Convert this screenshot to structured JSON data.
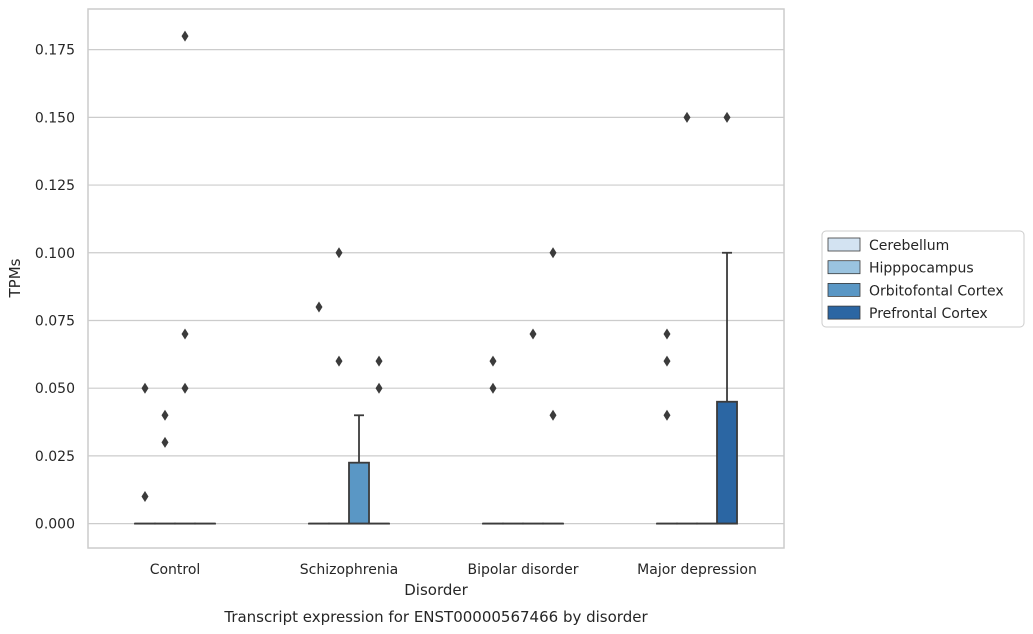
{
  "chart_data": {
    "type": "box",
    "caption": "Transcript expression for ENST00000567466 by disorder",
    "xlabel": "Disorder",
    "ylabel": "TPMs",
    "ylim": [
      -0.009,
      0.19
    ],
    "yticks": [
      "0.000",
      "0.025",
      "0.050",
      "0.075",
      "0.100",
      "0.125",
      "0.150",
      "0.175"
    ],
    "categories": [
      "Control",
      "Schizophrenia",
      "Bipolar disorder",
      "Major depression"
    ],
    "grid": true,
    "legend_position": "right",
    "series": [
      {
        "name": "Cerebellum",
        "color": "#d3e3f2",
        "boxes": [
          {
            "q1": 0,
            "median": 0,
            "q3": 0,
            "whisker_low": 0,
            "whisker_high": 0,
            "outliers": [
              0.01,
              0.05
            ]
          },
          {
            "q1": 0,
            "median": 0,
            "q3": 0,
            "whisker_low": 0,
            "whisker_high": 0,
            "outliers": [
              0.08
            ]
          },
          {
            "q1": 0,
            "median": 0,
            "q3": 0,
            "whisker_low": 0,
            "whisker_high": 0,
            "outliers": [
              0.05,
              0.06
            ]
          },
          {
            "q1": 0,
            "median": 0,
            "q3": 0,
            "whisker_low": 0,
            "whisker_high": 0,
            "outliers": [
              0.04,
              0.06,
              0.07
            ]
          }
        ]
      },
      {
        "name": "Hipppocampus",
        "color": "#9ac3df",
        "boxes": [
          {
            "q1": 0,
            "median": 0,
            "q3": 0,
            "whisker_low": 0,
            "whisker_high": 0,
            "outliers": [
              0.03,
              0.04
            ]
          },
          {
            "q1": 0,
            "median": 0,
            "q3": 0,
            "whisker_low": 0,
            "whisker_high": 0,
            "outliers": [
              0.06,
              0.1
            ]
          },
          {
            "q1": 0,
            "median": 0,
            "q3": 0,
            "whisker_low": 0,
            "whisker_high": 0,
            "outliers": []
          },
          {
            "q1": 0,
            "median": 0,
            "q3": 0,
            "whisker_low": 0,
            "whisker_high": 0,
            "outliers": [
              0.15
            ]
          }
        ]
      },
      {
        "name": "Orbitofontal Cortex",
        "color": "#5a97c5",
        "boxes": [
          {
            "q1": 0,
            "median": 0,
            "q3": 0,
            "whisker_low": 0,
            "whisker_high": 0,
            "outliers": [
              0.05,
              0.07,
              0.18
            ]
          },
          {
            "q1": 0,
            "median": 0,
            "q3": 0.0225,
            "whisker_low": 0,
            "whisker_high": 0.04,
            "outliers": []
          },
          {
            "q1": 0,
            "median": 0,
            "q3": 0,
            "whisker_low": 0,
            "whisker_high": 0,
            "outliers": [
              0.07
            ]
          },
          {
            "q1": 0,
            "median": 0,
            "q3": 0,
            "whisker_low": 0,
            "whisker_high": 0,
            "outliers": []
          }
        ]
      },
      {
        "name": "Prefrontal Cortex",
        "color": "#2b66a3",
        "boxes": [
          {
            "q1": 0,
            "median": 0,
            "q3": 0,
            "whisker_low": 0,
            "whisker_high": 0,
            "outliers": []
          },
          {
            "q1": 0,
            "median": 0,
            "q3": 0,
            "whisker_low": 0,
            "whisker_high": 0,
            "outliers": [
              0.05,
              0.06
            ]
          },
          {
            "q1": 0,
            "median": 0,
            "q3": 0,
            "whisker_low": 0,
            "whisker_high": 0,
            "outliers": [
              0.04,
              0.1
            ]
          },
          {
            "q1": 0,
            "median": 0,
            "q3": 0.045,
            "whisker_low": 0,
            "whisker_high": 0.1,
            "outliers": [
              0.15
            ]
          }
        ]
      }
    ]
  }
}
